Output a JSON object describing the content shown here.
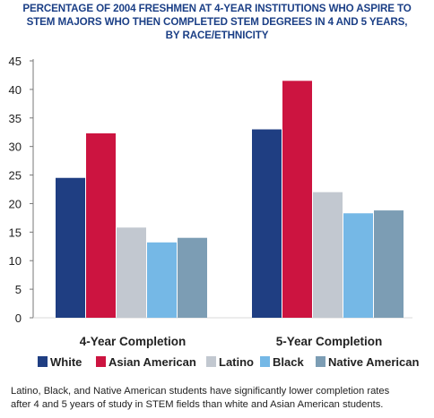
{
  "title_lines": [
    "PERCENTAGE OF 2004 FRESHMEN AT 4-YEAR INSTITUTIONS WHO ASPIRE TO",
    "STEM MAJORS WHO THEN COMPLETED STEM DEGREES IN 4 AND 5 YEARS,",
    "BY RACE/ETHNICITY"
  ],
  "caption_lines": [
    "Latino, Black, and Native American students have significantly lower completion rates",
    "after 4 and 5 years of study in STEM fields than white and Asian American students."
  ],
  "chart_data": {
    "type": "bar",
    "categories": [
      "4-Year Completion",
      "5-Year Completion"
    ],
    "series": [
      {
        "name": "White",
        "color": "#1f3e82",
        "values": [
          24.5,
          33.0
        ]
      },
      {
        "name": "Asian American",
        "color": "#cc1440",
        "values": [
          32.3,
          41.5
        ]
      },
      {
        "name": "Latino",
        "color": "#c2c8d0",
        "values": [
          15.8,
          22.0
        ]
      },
      {
        "name": "Black",
        "color": "#75b8e6",
        "values": [
          13.2,
          18.3
        ]
      },
      {
        "name": "Native American",
        "color": "#7c9db4",
        "values": [
          14.0,
          18.8
        ]
      }
    ],
    "yticks": [
      0,
      5,
      10,
      15,
      20,
      25,
      30,
      35,
      40,
      45
    ],
    "ylim": [
      0,
      45
    ],
    "grid": false,
    "legend_position": "bottom"
  }
}
